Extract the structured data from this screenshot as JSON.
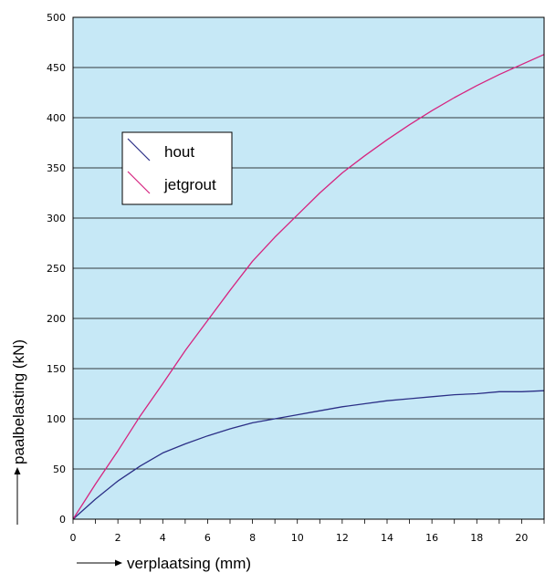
{
  "chart_data": {
    "type": "line",
    "title": "",
    "xlabel": "verplaatsing (mm)",
    "ylabel": "paalbelasting (kN)",
    "xlim": [
      0,
      21
    ],
    "ylim": [
      0,
      500
    ],
    "x_ticks": [
      0,
      2,
      4,
      6,
      8,
      10,
      12,
      14,
      16,
      18,
      20
    ],
    "y_ticks": [
      0,
      50,
      100,
      150,
      200,
      250,
      300,
      350,
      400,
      450,
      500
    ],
    "grid": "horizontal",
    "legend_position": "top-left",
    "background_color": "#c6e8f6",
    "series": [
      {
        "name": "hout",
        "color": "#2b2f86",
        "x": [
          0,
          1,
          2,
          3,
          4,
          5,
          6,
          7,
          8,
          9,
          10,
          11,
          12,
          13,
          14,
          15,
          16,
          17,
          18,
          19,
          20,
          21
        ],
        "y": [
          0,
          20,
          38,
          53,
          66,
          75,
          83,
          90,
          96,
          100,
          104,
          108,
          112,
          115,
          118,
          120,
          122,
          124,
          125,
          127,
          127,
          128
        ]
      },
      {
        "name": "jetgrout",
        "color": "#d6247f",
        "x": [
          0,
          1,
          2,
          3,
          4,
          5,
          6,
          7,
          8,
          9,
          10,
          11,
          12,
          13,
          14,
          15,
          16,
          17,
          18,
          19,
          20,
          21
        ],
        "y": [
          0,
          35,
          68,
          103,
          135,
          168,
          198,
          228,
          257,
          281,
          303,
          325,
          345,
          362,
          378,
          393,
          407,
          420,
          432,
          443,
          453,
          463
        ]
      }
    ]
  }
}
